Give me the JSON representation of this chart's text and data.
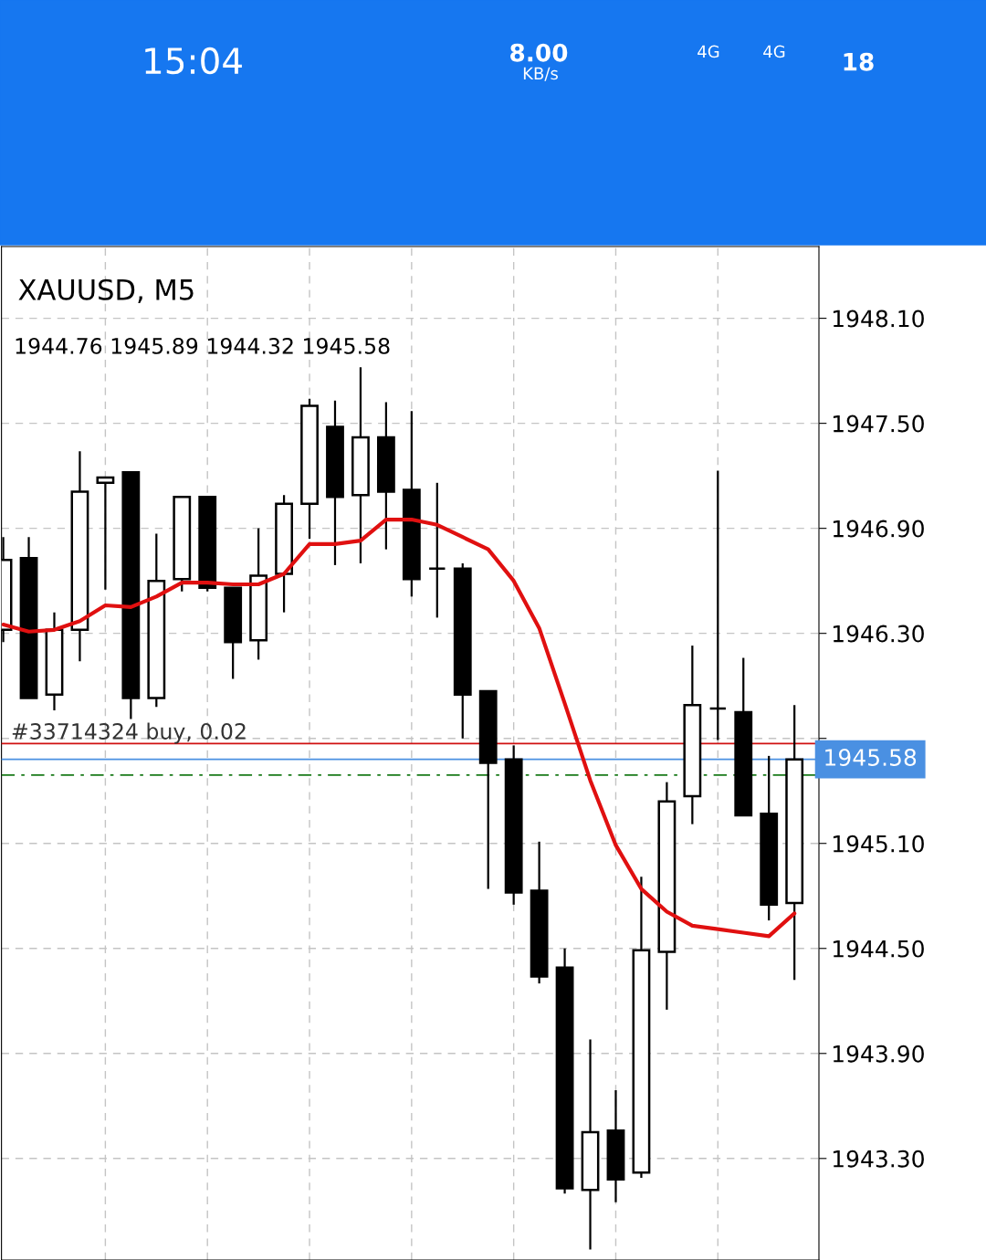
{
  "chart_data": {
    "type": "candlestick",
    "title": "XAUUSD, M5",
    "subtitle": "1944.76 1945.89 1944.32 1945.58",
    "annotations": [
      "15:04",
      "8.00",
      "KB/s",
      "4G",
      "4G",
      "18"
    ],
    "categories": [
      null,
      null,
      null,
      null,
      null,
      null,
      null,
      null,
      null,
      null,
      null,
      null,
      null,
      null,
      null,
      null,
      null,
      null,
      null,
      null,
      null,
      null,
      null,
      null,
      null,
      null,
      null,
      null,
      null,
      null,
      null,
      null
    ],
    "ohlc": [
      [
        1946.32,
        1946.85,
        1946.25,
        1946.72
      ],
      [
        1946.73,
        1946.85,
        1945.93,
        1945.93
      ],
      [
        1945.95,
        1946.42,
        1945.86,
        1946.32
      ],
      [
        1946.32,
        1947.34,
        1946.14,
        1947.11
      ],
      [
        1947.16,
        1947.19,
        1946.55,
        1947.19
      ],
      [
        1947.22,
        1947.22,
        1945.81,
        1945.93
      ],
      [
        1945.93,
        1946.87,
        1945.88,
        1946.6
      ],
      [
        1946.61,
        1947.08,
        1946.54,
        1947.08
      ],
      [
        1947.08,
        1947.08,
        1946.54,
        1946.56
      ],
      [
        1946.56,
        1946.56,
        1946.04,
        1946.25
      ],
      [
        1946.26,
        1946.9,
        1946.15,
        1946.63
      ],
      [
        1946.64,
        1947.09,
        1946.42,
        1947.04
      ],
      [
        1947.04,
        1947.64,
        1946.84,
        1947.6
      ],
      [
        1947.48,
        1947.63,
        1946.69,
        1947.08
      ],
      [
        1947.09,
        1947.82,
        1946.7,
        1947.42
      ],
      [
        1947.42,
        1947.62,
        1946.78,
        1947.11
      ],
      [
        1947.12,
        1947.57,
        1946.51,
        1946.61
      ],
      [
        1946.67,
        1947.16,
        1946.39,
        1946.67
      ],
      [
        1946.67,
        1946.7,
        1945.7,
        1945.95
      ],
      [
        1945.97,
        1945.97,
        1944.84,
        1945.56
      ],
      [
        1945.58,
        1945.66,
        1944.75,
        1944.82
      ],
      [
        1944.83,
        1945.11,
        1944.3,
        1944.34
      ],
      [
        1944.39,
        1944.5,
        1943.1,
        1943.13
      ],
      [
        1943.12,
        1943.98,
        1942.78,
        1943.45
      ],
      [
        1943.46,
        1943.69,
        1943.05,
        1943.18
      ],
      [
        1943.22,
        1944.91,
        1943.19,
        1944.49
      ],
      [
        1944.48,
        1945.45,
        1944.15,
        1945.34
      ],
      [
        1945.37,
        1946.23,
        1945.21,
        1945.89
      ],
      [
        1945.87,
        1947.23,
        1945.69,
        1945.87
      ],
      [
        1945.85,
        1946.16,
        1945.26,
        1945.26
      ],
      [
        1945.27,
        1945.6,
        1944.66,
        1944.75
      ],
      [
        1944.76,
        1945.89,
        1944.32,
        1945.58
      ]
    ],
    "series": [
      {
        "type": "line",
        "color": "#e01010",
        "values": [
          1946.35,
          1946.31,
          1946.32,
          1946.37,
          1946.46,
          1946.45,
          1946.51,
          1946.59,
          1946.59,
          1946.58,
          1946.58,
          1946.64,
          1946.81,
          1946.81,
          1946.83,
          1946.95,
          1946.95,
          1946.92,
          1946.85,
          1946.78,
          1946.6,
          1946.33,
          1945.9,
          1945.46,
          1945.09,
          1944.84,
          1944.71,
          1944.63,
          1944.61,
          1944.59,
          1944.57,
          1944.7
        ]
      }
    ],
    "ref_lines": [
      {
        "axis": "y",
        "value": 1945.67,
        "label": "#33714324 buy, 0.02",
        "color": "#d01010",
        "line_style": "solid"
      },
      {
        "axis": "y",
        "value": 1945.58,
        "label": "1945.58",
        "color": "#4a90e2",
        "line_style": "solid"
      },
      {
        "axis": "y",
        "value": 1945.49,
        "color": "#1a7a1a",
        "line_style": "dashed"
      }
    ],
    "ylim": [
      1942.72,
      1948.51
    ],
    "yticks": [
      {
        "value": 1948.1,
        "label": "1948.10"
      },
      {
        "value": 1947.5,
        "label": "1947.50"
      },
      {
        "value": 1946.9,
        "label": "1946.90"
      },
      {
        "value": 1946.3,
        "label": "1946.30"
      },
      {
        "value": 1945.7,
        "label": null
      },
      {
        "value": 1945.1,
        "label": "1945.10"
      },
      {
        "value": 1944.5,
        "label": "1944.50"
      },
      {
        "value": 1943.9,
        "label": "1943.90"
      },
      {
        "value": 1943.3,
        "label": "1943.30"
      }
    ],
    "tick_labels": "y",
    "grid": true,
    "legend": false
  }
}
